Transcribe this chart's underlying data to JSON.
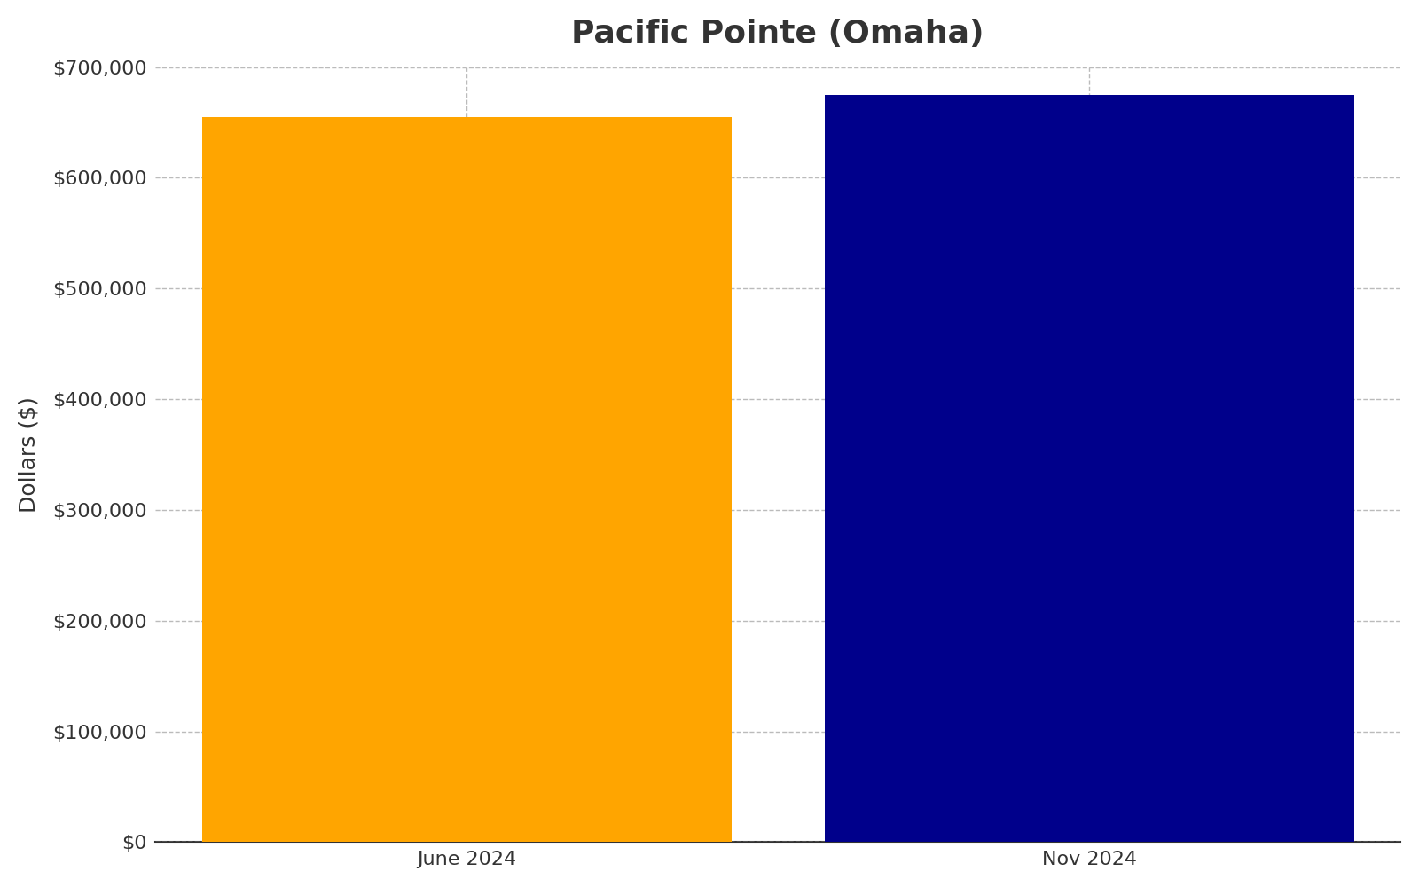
{
  "title": "Pacific Pointe (Omaha)",
  "categories": [
    "June 2024",
    "Nov 2024"
  ],
  "values": [
    655000,
    675000
  ],
  "bar_colors": [
    "#FFA500",
    "#00008B"
  ],
  "ylabel": "Dollars ($)",
  "ylim": [
    0,
    700000
  ],
  "yticks": [
    0,
    100000,
    200000,
    300000,
    400000,
    500000,
    600000,
    700000
  ],
  "ytick_labels": [
    "$0",
    "$100,000",
    "$200,000",
    "$300,000",
    "$400,000",
    "$500,000",
    "$600,000",
    "$700,000"
  ],
  "title_fontsize": 26,
  "axis_label_fontsize": 18,
  "tick_fontsize": 16,
  "bar_width": 0.85,
  "background_color": "#ffffff",
  "grid_color": "#bbbbbb",
  "title_color": "#333333",
  "axis_color": "#333333"
}
